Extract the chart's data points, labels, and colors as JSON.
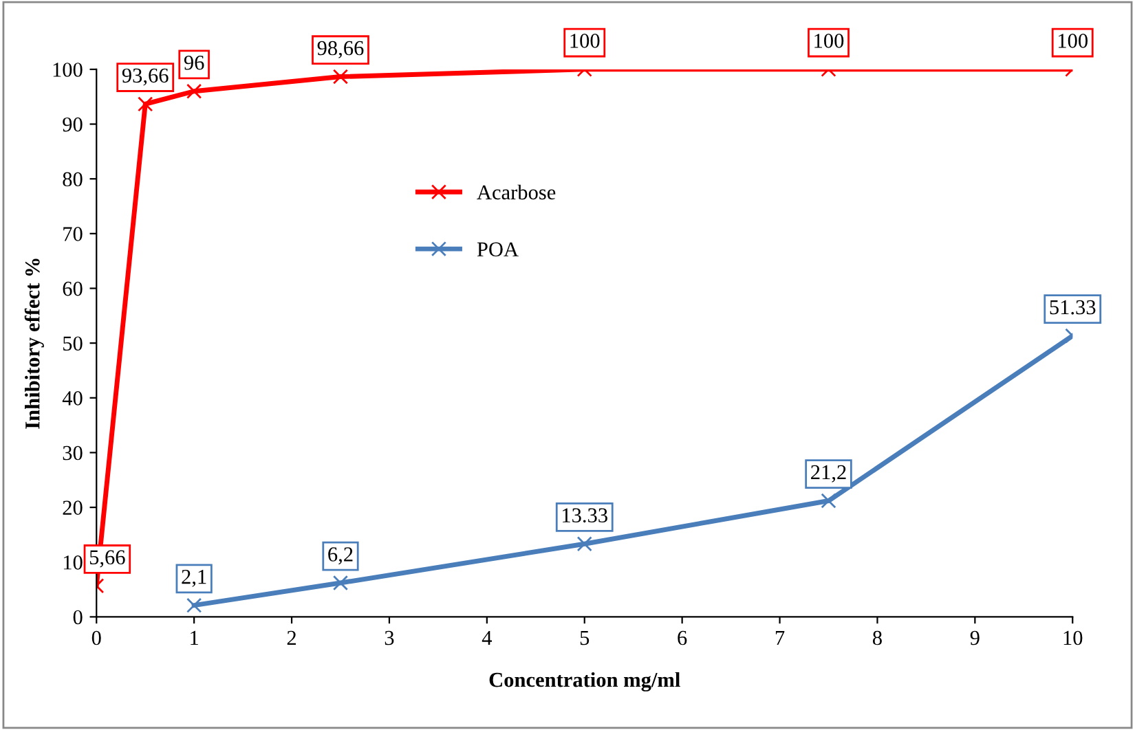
{
  "chart_data": {
    "type": "line",
    "xlabel": "Concentration mg/ml",
    "ylabel": "Inhibitory effect %",
    "xlim": [
      0,
      10
    ],
    "xticks": [
      0,
      1,
      2,
      3,
      4,
      5,
      6,
      7,
      8,
      9,
      10
    ],
    "ylim": [
      0,
      100
    ],
    "yticks": [
      0,
      10,
      20,
      30,
      40,
      50,
      60,
      70,
      80,
      90,
      100
    ],
    "grid": false,
    "legend": "center",
    "marker": "cross",
    "line_style": "solid",
    "series": [
      {
        "name": "Acarbose",
        "color": "#ff0000",
        "x": [
          0,
          0.5,
          1,
          2.5,
          5,
          7.5,
          10
        ],
        "values": [
          5.66,
          93.66,
          96,
          98.66,
          100,
          100,
          100
        ],
        "value_labels": [
          "5,66",
          "93,66",
          "96",
          "98,66",
          "100",
          "100",
          "100"
        ]
      },
      {
        "name": "POA",
        "color": "#4a7ebb",
        "x": [
          1,
          2.5,
          5,
          7.5,
          10
        ],
        "values": [
          2.1,
          6.2,
          13.33,
          21.2,
          51.33
        ],
        "value_labels": [
          "2,1",
          "6,2",
          "13.33",
          "21,2",
          "51.33"
        ]
      }
    ]
  }
}
